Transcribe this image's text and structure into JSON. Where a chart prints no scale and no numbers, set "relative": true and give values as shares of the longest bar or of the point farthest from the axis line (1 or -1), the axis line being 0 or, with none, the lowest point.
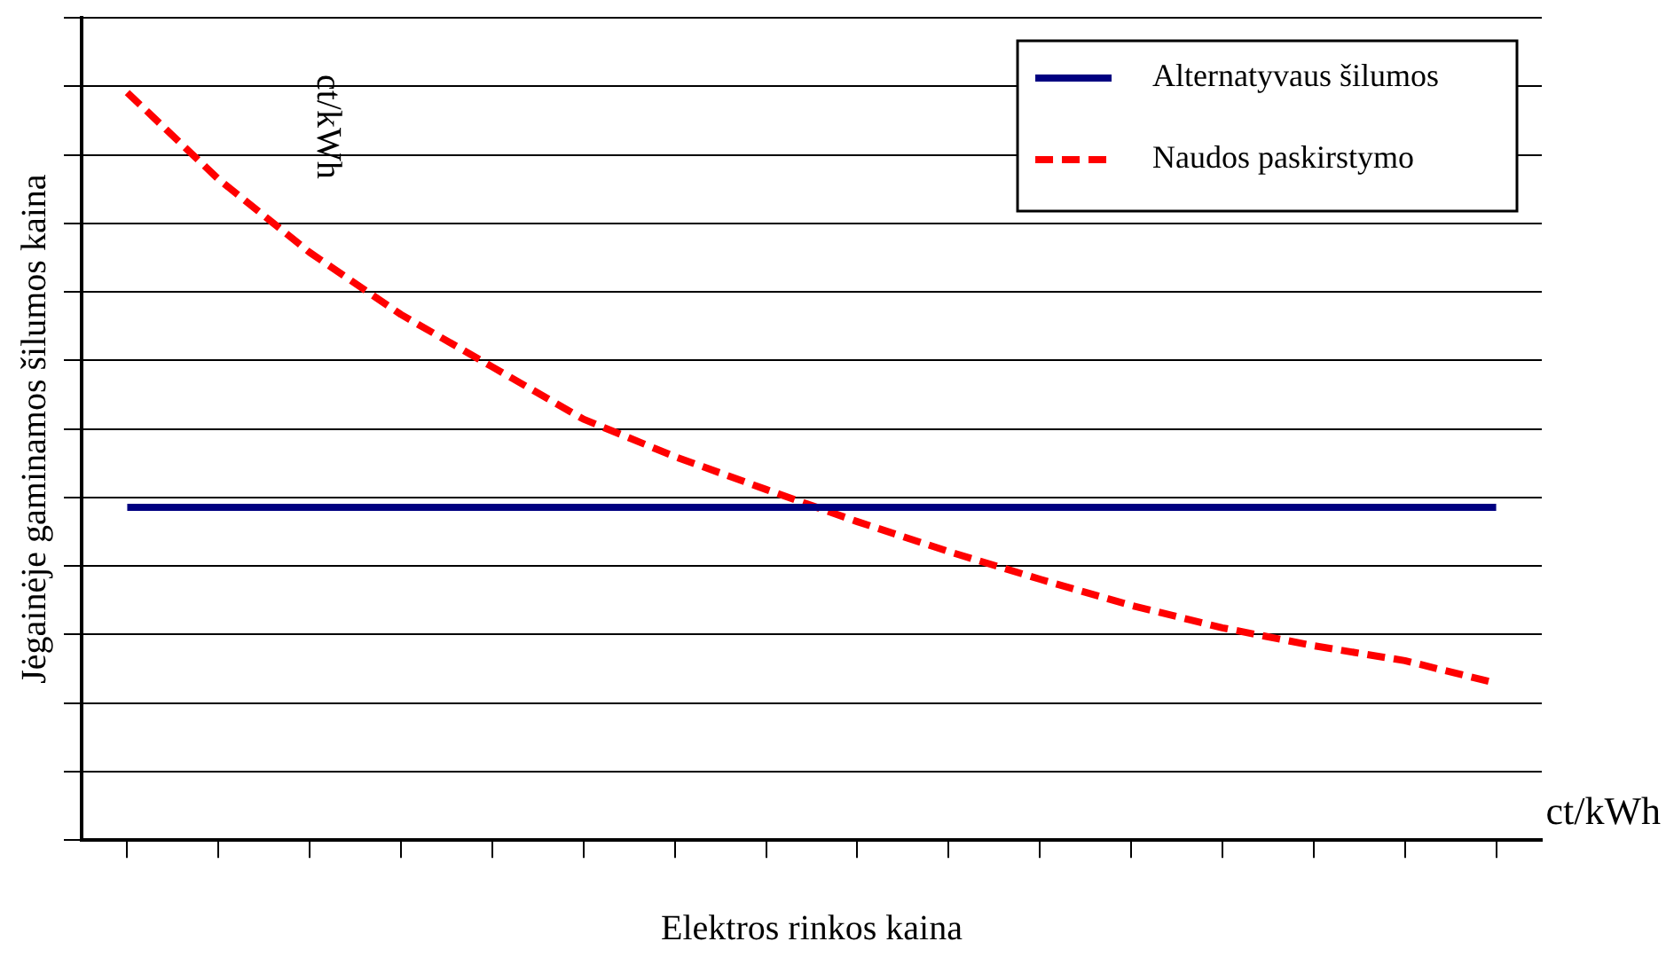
{
  "chart_data": {
    "type": "line",
    "relative": true,
    "xlabel": "Elektros rinkos kaina",
    "ylabel": "Jėgainėje gaminamos šilumos kaina",
    "annotations": [
      "ct/kWh",
      "ct/kWh"
    ],
    "categories": [
      null,
      null,
      null,
      null,
      null,
      null,
      null,
      null,
      null,
      null,
      null,
      null,
      null,
      null,
      null,
      null
    ],
    "series": [
      {
        "name": "Alternatyvaus šilumos",
        "color": "#000080",
        "line_style": "solid",
        "values": [
          0.445,
          0.445,
          0.445,
          0.445,
          0.445,
          0.445,
          0.445,
          0.445,
          0.445,
          0.445,
          0.445,
          0.445,
          0.445,
          0.445,
          0.445,
          0.445
        ]
      },
      {
        "name": "Naudos paskirstymo",
        "color": "#ff0000",
        "line_style": "dashed",
        "values": [
          1,
          0.884,
          0.786,
          0.703,
          0.633,
          0.563,
          0.513,
          0.469,
          0.426,
          0.386,
          0.349,
          0.314,
          0.284,
          0.26,
          0.24,
          0.21
        ]
      }
    ],
    "grid": "y",
    "legend": "top right",
    "marker": "none"
  }
}
